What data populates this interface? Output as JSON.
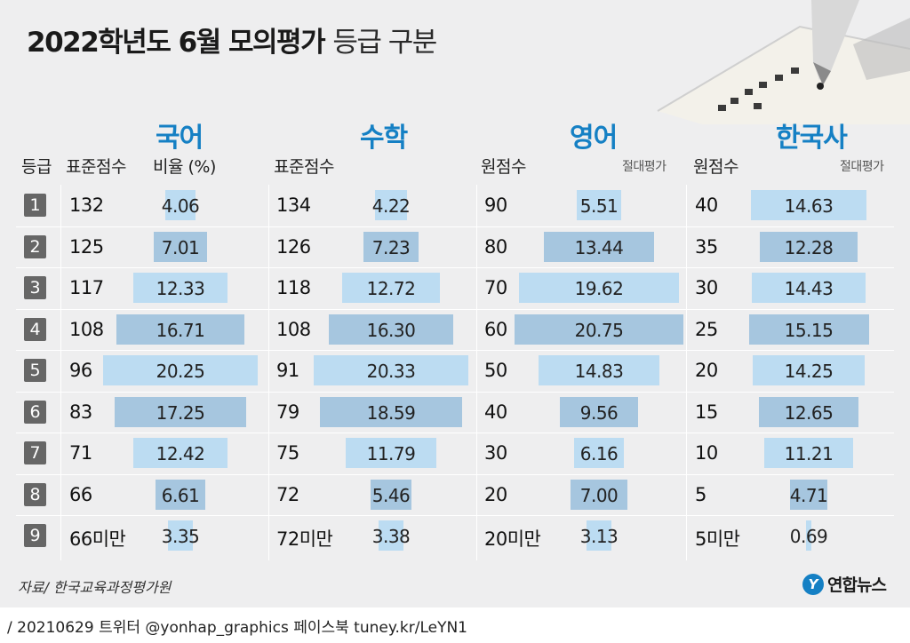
{
  "title": {
    "main": "2022학년도 6월 모의평가",
    "sub": "등급 구분"
  },
  "grades": [
    "1",
    "2",
    "3",
    "4",
    "5",
    "6",
    "7",
    "8",
    "9"
  ],
  "header": {
    "grade": "등급",
    "korean_score": "표준점수",
    "korean_ratio": "비율 (%)",
    "math_score": "표준점수",
    "english_score": "원점수",
    "english_note": "절대평가",
    "history_score": "원점수",
    "history_note": "절대평가"
  },
  "subjects": {
    "korean": "국어",
    "math": "수학",
    "english": "영어",
    "history": "한국사"
  },
  "colors": {
    "bar_light": "#bcdcf2",
    "bar_dark": "#a6c6df",
    "accent": "#1580c4",
    "grade_box": "#666666"
  },
  "chart_data": [
    {
      "type": "table",
      "name": "국어",
      "categories": [
        "1",
        "2",
        "3",
        "4",
        "5",
        "6",
        "7",
        "8",
        "9"
      ],
      "scores": [
        "132",
        "125",
        "117",
        "108",
        "96",
        "83",
        "71",
        "66",
        "66미만"
      ],
      "values": [
        4.06,
        7.01,
        12.33,
        16.71,
        20.25,
        17.25,
        12.42,
        6.61,
        3.35
      ],
      "labels": [
        "4.06",
        "7.01",
        "12.33",
        "16.71",
        "20.25",
        "17.25",
        "12.42",
        "6.61",
        "3.35"
      ]
    },
    {
      "type": "table",
      "name": "수학",
      "categories": [
        "1",
        "2",
        "3",
        "4",
        "5",
        "6",
        "7",
        "8",
        "9"
      ],
      "scores": [
        "134",
        "126",
        "118",
        "108",
        "91",
        "79",
        "75",
        "72",
        "72미만"
      ],
      "values": [
        4.22,
        7.23,
        12.72,
        16.3,
        20.33,
        18.59,
        11.79,
        5.46,
        3.38
      ],
      "labels": [
        "4.22",
        "7.23",
        "12.72",
        "16.30",
        "20.33",
        "18.59",
        "11.79",
        "5.46",
        "3.38"
      ]
    },
    {
      "type": "table",
      "name": "영어",
      "categories": [
        "1",
        "2",
        "3",
        "4",
        "5",
        "6",
        "7",
        "8",
        "9"
      ],
      "scores": [
        "90",
        "80",
        "70",
        "60",
        "50",
        "40",
        "30",
        "20",
        "20미만"
      ],
      "values": [
        5.51,
        13.44,
        19.62,
        20.75,
        14.83,
        9.56,
        6.16,
        7.0,
        3.13
      ],
      "labels": [
        "5.51",
        "13.44",
        "19.62",
        "20.75",
        "14.83",
        "9.56",
        "6.16",
        "7.00",
        "3.13"
      ]
    },
    {
      "type": "table",
      "name": "한국사",
      "categories": [
        "1",
        "2",
        "3",
        "4",
        "5",
        "6",
        "7",
        "8",
        "9"
      ],
      "scores": [
        "40",
        "35",
        "30",
        "25",
        "20",
        "15",
        "10",
        "5",
        "5미만"
      ],
      "values": [
        14.63,
        12.28,
        14.43,
        15.15,
        14.25,
        12.65,
        11.21,
        4.71,
        0.69
      ],
      "labels": [
        "14.63",
        "12.28",
        "14.43",
        "15.15",
        "14.25",
        "12.65",
        "11.21",
        "4.71",
        "0.69"
      ]
    }
  ],
  "source": "자료/ 한국교육과정평가원",
  "logo": {
    "mark": "Y",
    "text": "연합뉴스"
  },
  "footer": "/ 20210629  트위터 @yonhap_graphics  페이스북 tuney.kr/LeYN1"
}
